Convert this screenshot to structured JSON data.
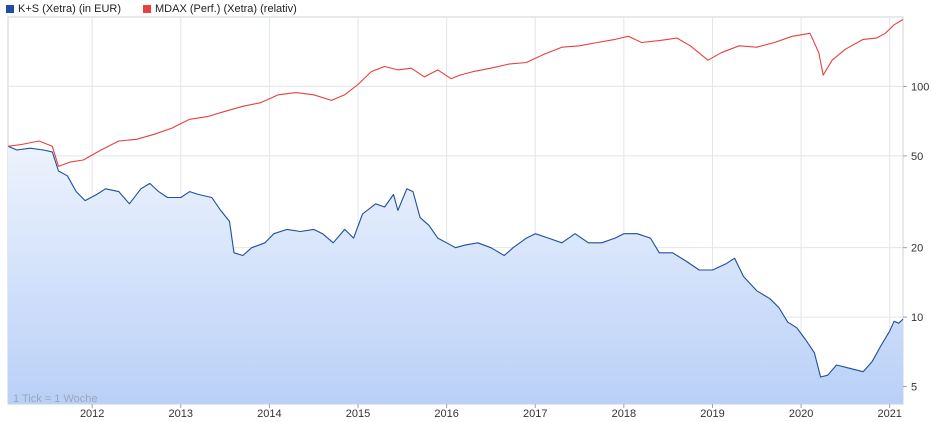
{
  "chart_data": {
    "type": "line",
    "yscale": "log",
    "ylim": [
      4.2,
      200
    ],
    "yticks": [
      5,
      10,
      20,
      50,
      100
    ],
    "xlim": [
      2011.05,
      2021.15
    ],
    "xticks": [
      "2012",
      "2013",
      "2014",
      "2015",
      "2016",
      "2017",
      "2018",
      "2019",
      "2020",
      "2021"
    ],
    "grid": true,
    "legend_position": "top-left",
    "note": "1 Tick = 1 Woche",
    "series": [
      {
        "name": "K+S (Xetra) (in EUR)",
        "color": "#1f4e9c",
        "fill": true,
        "points": [
          [
            2011.05,
            55
          ],
          [
            2011.15,
            53
          ],
          [
            2011.3,
            54
          ],
          [
            2011.45,
            53
          ],
          [
            2011.55,
            52
          ],
          [
            2011.62,
            43
          ],
          [
            2011.72,
            41
          ],
          [
            2011.82,
            35
          ],
          [
            2011.92,
            32
          ],
          [
            2012.05,
            34
          ],
          [
            2012.15,
            36
          ],
          [
            2012.3,
            35
          ],
          [
            2012.42,
            31
          ],
          [
            2012.55,
            36
          ],
          [
            2012.65,
            38
          ],
          [
            2012.75,
            35
          ],
          [
            2012.85,
            33
          ],
          [
            2013.0,
            33
          ],
          [
            2013.1,
            35
          ],
          [
            2013.2,
            34
          ],
          [
            2013.35,
            33
          ],
          [
            2013.45,
            29
          ],
          [
            2013.55,
            26
          ],
          [
            2013.6,
            19
          ],
          [
            2013.7,
            18.5
          ],
          [
            2013.8,
            20
          ],
          [
            2013.95,
            21
          ],
          [
            2014.05,
            23
          ],
          [
            2014.2,
            24
          ],
          [
            2014.35,
            23.5
          ],
          [
            2014.5,
            24
          ],
          [
            2014.6,
            23
          ],
          [
            2014.72,
            21
          ],
          [
            2014.85,
            24
          ],
          [
            2014.95,
            22
          ],
          [
            2015.05,
            28
          ],
          [
            2015.2,
            31
          ],
          [
            2015.3,
            30
          ],
          [
            2015.4,
            34
          ],
          [
            2015.45,
            29
          ],
          [
            2015.55,
            36
          ],
          [
            2015.62,
            35
          ],
          [
            2015.7,
            27
          ],
          [
            2015.8,
            25
          ],
          [
            2015.9,
            22
          ],
          [
            2016.0,
            21
          ],
          [
            2016.1,
            20
          ],
          [
            2016.2,
            20.5
          ],
          [
            2016.35,
            21
          ],
          [
            2016.5,
            20
          ],
          [
            2016.65,
            18.5
          ],
          [
            2016.75,
            20
          ],
          [
            2016.9,
            22
          ],
          [
            2017.0,
            23
          ],
          [
            2017.15,
            22
          ],
          [
            2017.3,
            21
          ],
          [
            2017.45,
            23
          ],
          [
            2017.6,
            21
          ],
          [
            2017.75,
            21
          ],
          [
            2017.9,
            22
          ],
          [
            2018.0,
            23
          ],
          [
            2018.15,
            23
          ],
          [
            2018.3,
            22
          ],
          [
            2018.4,
            19
          ],
          [
            2018.55,
            19
          ],
          [
            2018.7,
            17.5
          ],
          [
            2018.85,
            16
          ],
          [
            2019.0,
            16
          ],
          [
            2019.15,
            17
          ],
          [
            2019.25,
            18
          ],
          [
            2019.35,
            15
          ],
          [
            2019.5,
            13
          ],
          [
            2019.65,
            12
          ],
          [
            2019.75,
            11
          ],
          [
            2019.85,
            9.5
          ],
          [
            2019.95,
            9
          ],
          [
            2020.05,
            8
          ],
          [
            2020.15,
            7
          ],
          [
            2020.22,
            5.5
          ],
          [
            2020.3,
            5.6
          ],
          [
            2020.4,
            6.2
          ],
          [
            2020.55,
            6.0
          ],
          [
            2020.7,
            5.8
          ],
          [
            2020.8,
            6.4
          ],
          [
            2020.9,
            7.5
          ],
          [
            2021.0,
            8.7
          ],
          [
            2021.05,
            9.6
          ],
          [
            2021.1,
            9.4
          ],
          [
            2021.15,
            9.8
          ]
        ]
      },
      {
        "name": "MDAX (Perf.) (Xetra) (relativ)",
        "color": "#e8403e",
        "fill": false,
        "points": [
          [
            2011.05,
            55
          ],
          [
            2011.2,
            56
          ],
          [
            2011.4,
            58
          ],
          [
            2011.55,
            55
          ],
          [
            2011.62,
            45
          ],
          [
            2011.75,
            47
          ],
          [
            2011.9,
            48
          ],
          [
            2012.1,
            53
          ],
          [
            2012.3,
            58
          ],
          [
            2012.5,
            59
          ],
          [
            2012.7,
            62
          ],
          [
            2012.9,
            66
          ],
          [
            2013.1,
            72
          ],
          [
            2013.3,
            74
          ],
          [
            2013.5,
            78
          ],
          [
            2013.7,
            82
          ],
          [
            2013.9,
            85
          ],
          [
            2014.1,
            92
          ],
          [
            2014.3,
            94
          ],
          [
            2014.5,
            92
          ],
          [
            2014.7,
            87
          ],
          [
            2014.85,
            92
          ],
          [
            2015.0,
            102
          ],
          [
            2015.15,
            116
          ],
          [
            2015.3,
            122
          ],
          [
            2015.45,
            118
          ],
          [
            2015.6,
            120
          ],
          [
            2015.75,
            110
          ],
          [
            2015.9,
            118
          ],
          [
            2016.05,
            108
          ],
          [
            2016.15,
            112
          ],
          [
            2016.3,
            116
          ],
          [
            2016.5,
            120
          ],
          [
            2016.7,
            125
          ],
          [
            2016.9,
            127
          ],
          [
            2017.1,
            138
          ],
          [
            2017.3,
            148
          ],
          [
            2017.5,
            150
          ],
          [
            2017.7,
            155
          ],
          [
            2017.9,
            160
          ],
          [
            2018.05,
            165
          ],
          [
            2018.2,
            155
          ],
          [
            2018.4,
            158
          ],
          [
            2018.6,
            162
          ],
          [
            2018.75,
            150
          ],
          [
            2018.95,
            130
          ],
          [
            2019.1,
            140
          ],
          [
            2019.3,
            150
          ],
          [
            2019.5,
            148
          ],
          [
            2019.7,
            155
          ],
          [
            2019.9,
            165
          ],
          [
            2020.1,
            170
          ],
          [
            2020.2,
            140
          ],
          [
            2020.25,
            112
          ],
          [
            2020.35,
            130
          ],
          [
            2020.5,
            145
          ],
          [
            2020.7,
            160
          ],
          [
            2020.85,
            162
          ],
          [
            2020.95,
            170
          ],
          [
            2021.05,
            185
          ],
          [
            2021.15,
            195
          ]
        ]
      }
    ]
  }
}
